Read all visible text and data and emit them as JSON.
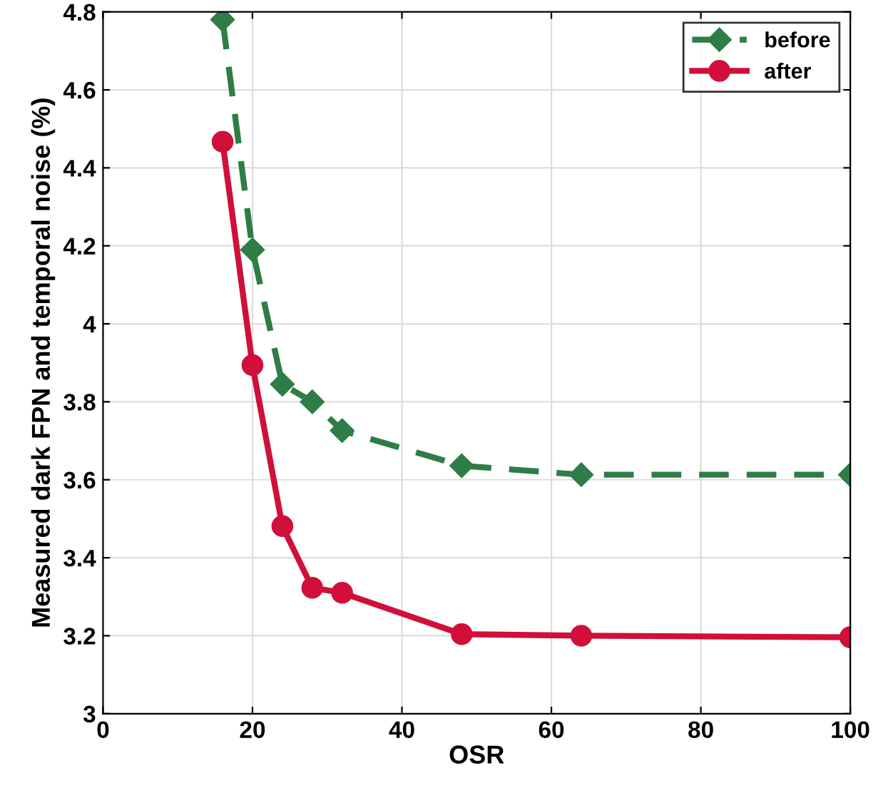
{
  "chart_data": {
    "type": "line",
    "xlabel": "OSR",
    "ylabel": "Measured dark FPN and temporal noise (%)",
    "x": [
      16,
      20,
      24,
      28,
      32,
      48,
      64,
      100
    ],
    "series": [
      {
        "name": "before",
        "color": "#2e7d46",
        "marker": "diamond",
        "line_style": "dashed",
        "values": [
          4.78,
          4.19,
          3.845,
          3.8,
          3.726,
          3.636,
          3.613,
          3.613
        ]
      },
      {
        "name": "after",
        "color": "#d0103a",
        "marker": "circle",
        "line_style": "solid",
        "values": [
          4.467,
          3.894,
          3.481,
          3.323,
          3.31,
          3.204,
          3.2,
          3.196
        ]
      }
    ],
    "xlim": [
      0,
      100
    ],
    "xticks": [
      0,
      20,
      40,
      60,
      80,
      100
    ],
    "ylim": [
      3,
      4.8
    ],
    "yticks": [
      3,
      3.2,
      3.4,
      3.6,
      3.8,
      4,
      4.2,
      4.4,
      4.6,
      4.8
    ],
    "grid": true,
    "legend": "top right"
  }
}
